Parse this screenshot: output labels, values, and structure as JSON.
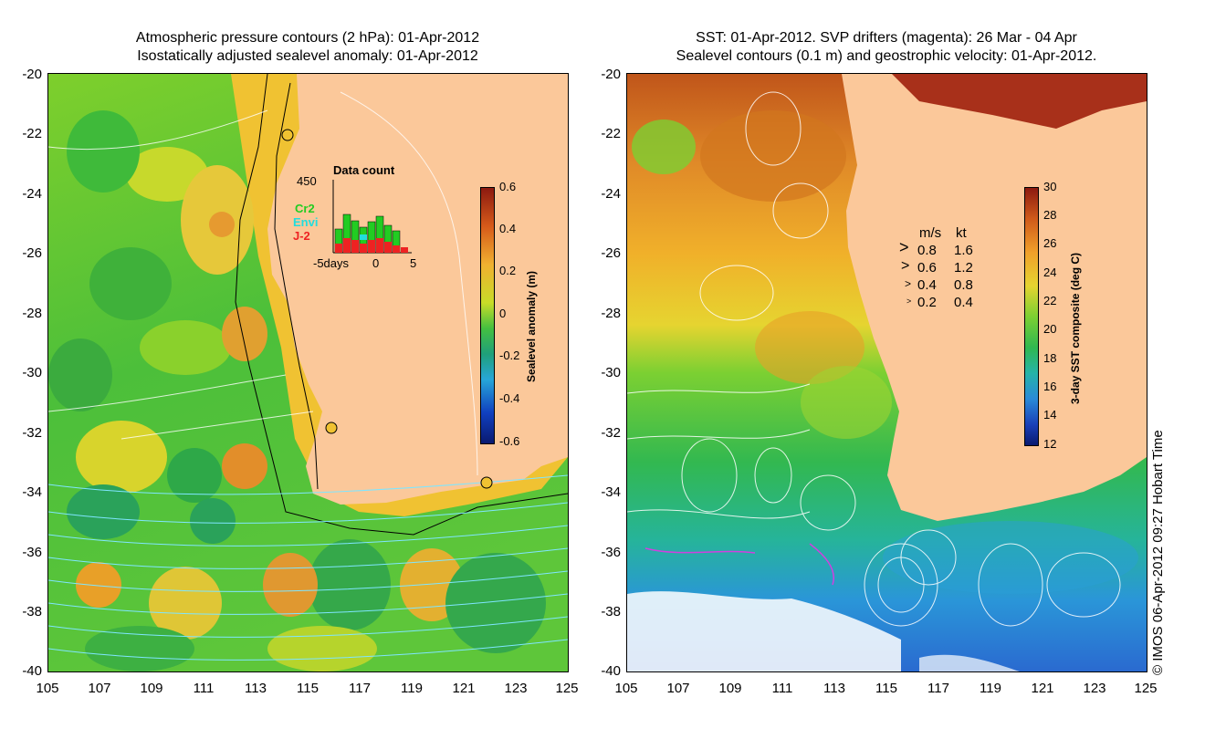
{
  "left_panel": {
    "title_line1": "Atmospheric pressure contours (2 hPa): 01-Apr-2012",
    "title_line2": "Isostatically adjusted sealevel anomaly: 01-Apr-2012",
    "colorbar_label": "Sealevel anomaly (m)",
    "colorbar_ticks": [
      "0.6",
      "0.4",
      "0.2",
      "0",
      "-0.2",
      "-0.4",
      "-0.6"
    ],
    "inset": {
      "title": "Data count",
      "ymax_label": "450",
      "x_labels": [
        "-5days",
        "0",
        "5"
      ],
      "legend": [
        {
          "name": "Cr2",
          "color": "#22cc22"
        },
        {
          "name": "Envi",
          "color": "#22dddd"
        },
        {
          "name": "J-2",
          "color": "#ee2222"
        }
      ]
    }
  },
  "right_panel": {
    "title_line1": "SST: 01-Apr-2012. SVP drifters (magenta): 26 Mar - 04 Apr",
    "title_line2": "Sealevel contours (0.1 m) and geostrophic velocity: 01-Apr-2012.",
    "colorbar_label": "3-day SST composite (deg C)",
    "colorbar_ticks": [
      "30",
      "28",
      "26",
      "24",
      "22",
      "20",
      "18",
      "16",
      "14",
      "12"
    ],
    "speed_legend": {
      "header_ms": "m/s",
      "header_kt": "kt",
      "rows": [
        {
          "ms": "0.8",
          "kt": "1.6"
        },
        {
          "ms": "0.6",
          "kt": "1.2"
        },
        {
          "ms": "0.4",
          "kt": "0.8"
        },
        {
          "ms": "0.2",
          "kt": "0.4"
        }
      ]
    }
  },
  "y_axis_labels": [
    "-20",
    "-22",
    "-24",
    "-26",
    "-28",
    "-30",
    "-32",
    "-34",
    "-36",
    "-38",
    "-40"
  ],
  "x_axis_labels": [
    "105",
    "107",
    "109",
    "111",
    "113",
    "115",
    "117",
    "119",
    "121",
    "123",
    "125"
  ],
  "credit": "© IMOS 06-Apr-2012 09:27 Hobart Time",
  "colors": {
    "land": "#fbc89a",
    "ocean_mid": "#66cc33"
  }
}
